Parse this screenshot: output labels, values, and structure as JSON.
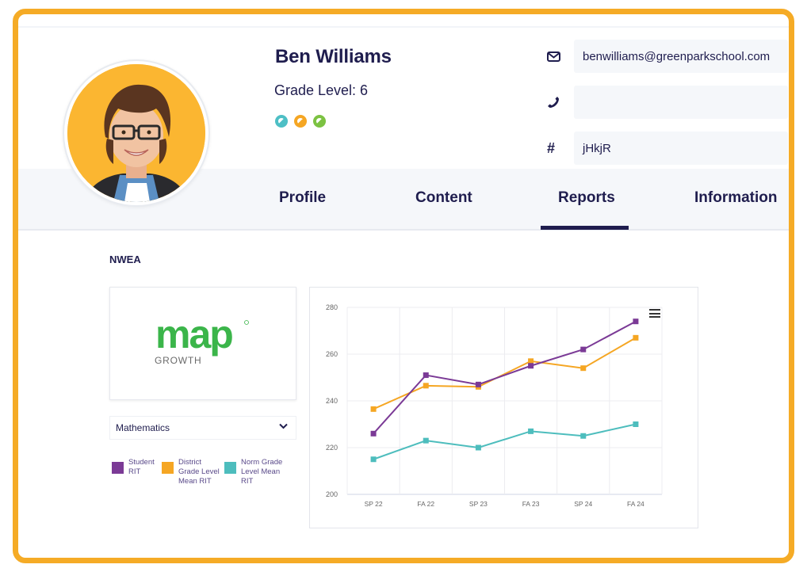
{
  "student": {
    "name": "Ben Williams",
    "grade_label": "Grade Level: 6",
    "badges": [
      {
        "icon": "half-circle-badge-icon",
        "color": "#4dbfc5"
      },
      {
        "icon": "half-circle-badge-icon",
        "color": "#f5a623"
      },
      {
        "icon": "half-circle-badge-icon",
        "color": "#7cc242"
      }
    ]
  },
  "contact": {
    "email": {
      "icon": "envelope-icon",
      "value": "benwilliams@greenparkschool.com"
    },
    "phone": {
      "icon": "phone-icon",
      "value": ""
    },
    "id": {
      "icon": "hash-icon",
      "value": "jHkjR"
    }
  },
  "tabs": [
    {
      "label": "Profile",
      "active": false
    },
    {
      "label": "Content",
      "active": false
    },
    {
      "label": "Reports",
      "active": true
    },
    {
      "label": "Information",
      "active": false
    }
  ],
  "reports": {
    "section_title": "NWEA",
    "logo": {
      "brand": "map",
      "subtitle": "GROWTH",
      "trademark": "™",
      "registered": "®",
      "brand_color": "#3bb54a"
    },
    "subject_select": {
      "value": "Mathematics",
      "icon": "chevron-down-icon"
    },
    "chart_menu_icon": "hamburger-menu-icon"
  },
  "colors": {
    "frame": "#f5ab26",
    "navy": "#1f1d4e",
    "student": "#7b3a96",
    "district": "#f5a623",
    "norm": "#4dbdbd"
  },
  "chart_data": {
    "type": "line",
    "title": "",
    "xlabel": "",
    "ylabel": "",
    "categories": [
      "SP 22",
      "FA 22",
      "SP 23",
      "FA 23",
      "SP 24",
      "FA 24"
    ],
    "yticks": [
      200,
      220,
      240,
      260,
      280
    ],
    "ylim": [
      200,
      280
    ],
    "grid": true,
    "legend_position": "left-outside",
    "marker": "square",
    "series": [
      {
        "name": "Student RIT",
        "color": "#7b3a96",
        "values": [
          226,
          251,
          247,
          255,
          262,
          274
        ]
      },
      {
        "name": "District Grade Level Mean RIT",
        "color": "#f5a623",
        "values": [
          236.5,
          246.5,
          246,
          257,
          254,
          267
        ]
      },
      {
        "name": "Norm Grade Level Mean RIT",
        "color": "#4dbdbd",
        "values": [
          215,
          223,
          220,
          227,
          225,
          230
        ]
      }
    ]
  }
}
